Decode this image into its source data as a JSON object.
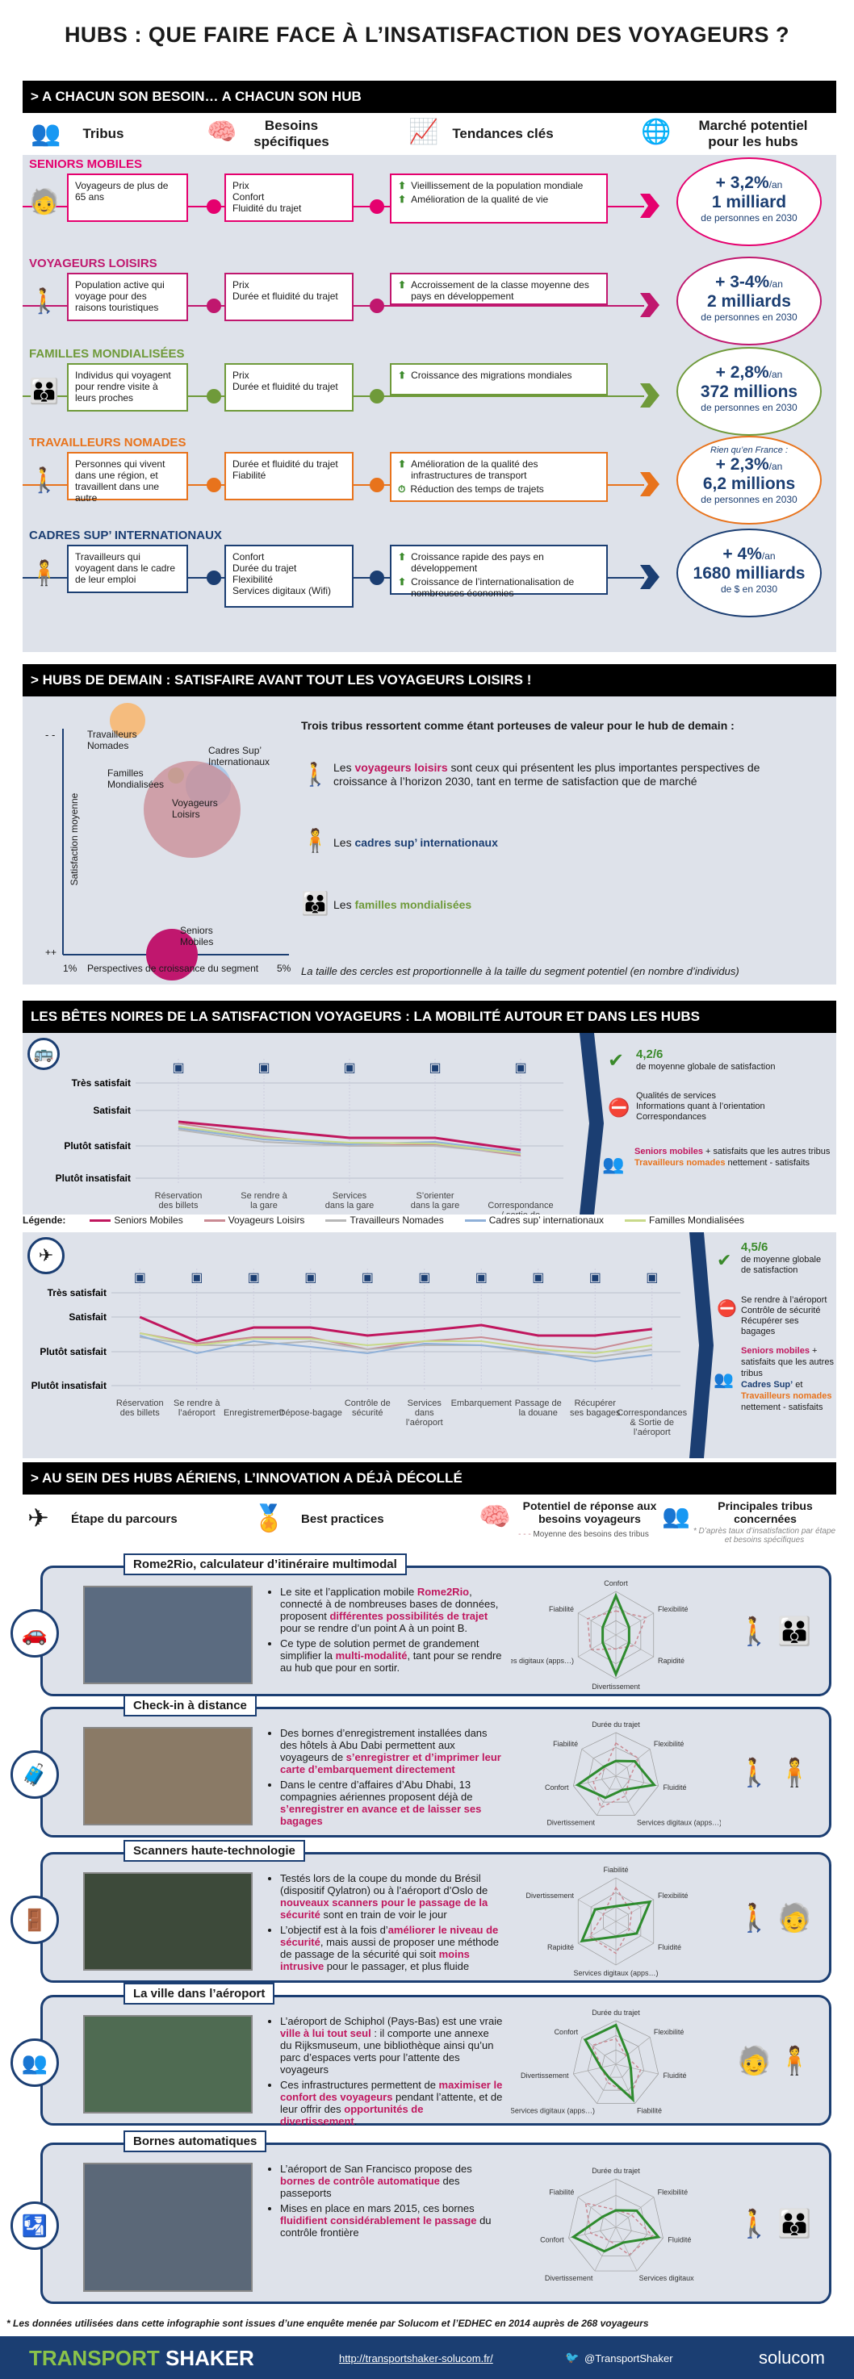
{
  "title": "HUBS : QUE FAIRE FACE À L’INSATISFACTION DES VOYAGEURS ?",
  "s1": {
    "header": "> A CHACUN SON BESOIN… A CHACUN SON HUB",
    "cols": [
      "Tribus",
      "Besoins spécifiques",
      "Tendances clés",
      "Marché potentiel pour les hubs"
    ],
    "segments": [
      {
        "name": "SENIORS MOBILES",
        "color": "#e5006e",
        "desc": "Voyageurs de plus de 65 ans",
        "needs": "Prix\nConfort\nFluidité du trajet",
        "trends": [
          "Vieillissement de la population mondiale",
          "Amélioration de la qualité de vie"
        ],
        "pct": "+ 3,2%",
        "per": "/an",
        "amount": "1 milliard",
        "unit": "de personnes en 2030",
        "note": ""
      },
      {
        "name": "VOYAGEURS LOISIRS",
        "color": "#c0176e",
        "desc": "Population active qui voyage pour des raisons touristiques",
        "needs": "Prix\nDurée et fluidité du trajet",
        "trends": [
          "Accroissement de la classe moyenne des pays en développement"
        ],
        "pct": "+ 3-4%",
        "per": "/an",
        "amount": "2 milliards",
        "unit": "de personnes en 2030",
        "note": ""
      },
      {
        "name": "FAMILLES MONDIALISÉES",
        "color": "#6f9a3a",
        "desc": "Individus qui voyagent pour rendre visite à leurs proches",
        "needs": "Prix\nDurée et fluidité du trajet",
        "trends": [
          "Croissance des migrations mondiales"
        ],
        "pct": "+ 2,8%",
        "per": "/an",
        "amount": "372 millions",
        "unit": "de personnes en 2030",
        "note": ""
      },
      {
        "name": "TRAVAILLEURS NOMADES",
        "color": "#e8731c",
        "desc": "Personnes qui vivent dans une région, et travaillent dans une autre",
        "needs": "Durée et fluidité du trajet\nFiabilité",
        "trends": [
          "Amélioration de la qualité des infrastructures de transport",
          "Réduction des temps de trajets"
        ],
        "pct": "+ 2,3%",
        "per": "/an",
        "amount": "6,2 millions",
        "unit": "de personnes en 2030",
        "note": "Rien qu’en France :"
      },
      {
        "name": "CADRES SUP’ INTERNATIONAUX",
        "color": "#1b3e72",
        "desc": "Travailleurs qui voyagent dans le cadre de leur emploi",
        "needs": "Confort\nDurée du trajet\nFlexibilité\nServices digitaux (Wifi)",
        "trends": [
          "Croissance rapide des pays en développement",
          "Croissance de l’internationalisation de nombreuses économies"
        ],
        "pct": "+ 4%",
        "per": "/an",
        "amount": "1680 milliards",
        "unit": "de $ en 2030",
        "note": ""
      }
    ]
  },
  "s2": {
    "header": "> HUBS DE DEMAIN : SATISFAIRE  AVANT TOUT LES VOYAGEURS LOISIRS !",
    "ylabel": "Satisfaction moyenne",
    "xlabel": "Perspectives de croissance du segment",
    "yminus": "- -",
    "yplus": "++",
    "xmin": "1%",
    "xmax": "5%",
    "bubbles": [
      "Travailleurs Nomades",
      "Cadres Sup’ Internationaux",
      "Familles Mondialisées",
      "Voyageurs Loisirs",
      "Seniors Mobiles"
    ],
    "intro": "Trois tribus ressortent comme étant porteuses de valeur pour le hub de demain :",
    "t1a": "Les ",
    "t1b": "voyageurs loisirs",
    "t1c": " sont ceux qui présentent les plus importantes perspectives de croissance à l’horizon 2030, tant en terme de satisfaction que de marché",
    "t2a": "Les ",
    "t2b": "cadres sup’ internationaux",
    "t3a": "Les ",
    "t3b": "familles mondialisées",
    "note": "La taille des cercles est proportionnelle à la taille du segment potentiel (en nombre d’individus)"
  },
  "s3": {
    "header": "LES BÊTES NOIRES DE LA SATISFACTION VOYAGEURS : LA MOBILITÉ AUTOUR ET DANS LES HUBS",
    "levels": [
      "Très satisfait",
      "Satisfait",
      "Plutôt satisfait",
      "Plutôt insatisfait"
    ],
    "ground_cats": [
      "Réservation des billets",
      "Se rendre à la gare",
      "Services dans la gare",
      "S’orienter dans la gare",
      "Correspondance / sortie de la gare"
    ],
    "ground_score": "4,2/6",
    "ground_score_txt": "de moyenne globale de satisfaction",
    "ground_ok": "Qualités de services\nInformations quant à l’orientation\nCorrespondances",
    "ground_t1": "Seniors mobiles",
    "ground_t2": " + satisfaits que les autres tribus",
    "ground_t3": "Travailleurs nomades",
    "ground_t4": " nettement - satisfaits",
    "legend_label": "Légende:",
    "legend": [
      "Seniors Mobiles",
      "Voyageurs Loisirs",
      "Travailleurs Nomades",
      "Cadres sup’ internationaux",
      "Familles Mondialisées"
    ],
    "air_cats": [
      "Réservation des billets",
      "Se rendre à l’aéroport",
      "Enregistrement",
      "Dépose-bagage",
      "Contrôle de sécurité",
      "Services dans l’aéroport",
      "Embarquement",
      "Passage de la douane",
      "Récupérer ses bagages",
      "Correspondances & Sortie de l’aéroport"
    ],
    "air_score": "4,5/6",
    "air_score_txt": "de moyenne globale de satisfaction",
    "air_ko": "Se rendre à l’aéroport\nContrôle de sécurité\nRécupérer ses bagages",
    "air_t1": "Seniors mobiles",
    "air_t2": " + satisfaits que les autres tribus",
    "air_t3": "Cadres Sup’",
    "air_t4": " et ",
    "air_t5": "Travailleurs nomades",
    "air_t6": " nettement - satisfaits"
  },
  "s4": {
    "header": "> AU SEIN DES HUBS AÉRIENS, L’INNOVATION A DÉJÀ DÉCOLLÉ",
    "h1": "Étape du parcours",
    "h2": "Best practices",
    "h3": "Potentiel de réponse aux besoins voyageurs",
    "h3b": "Moyenne des besoins des tribus",
    "h4": "Principales tribus concernées",
    "h4b": "* D’après taux d’insatisfaction par étape et besoins spécifiques",
    "cards": [
      {
        "title": "Rome2Rio, calculateur d’itinéraire multimodal",
        "axes": [
          "Confort",
          "Flexibilité",
          "Rapidité",
          "Divertissement",
          "Services digitaux (apps…)",
          "Fiabilité"
        ],
        "bullets": [
          [
            "Le site et l’application mobile ",
            "Rome2Rio",
            ", connecté à de nombreuses bases de données, proposent ",
            "différentes possibilités de trajet",
            " pour se rendre d’un point A à un point B."
          ],
          [
            "Ce type de solution permet de grandement simplifier la ",
            "multi-modalité",
            ", tant pour se rendre au hub que pour en sortir.",
            "",
            ""
          ]
        ]
      },
      {
        "title": "Check-in à distance",
        "axes": [
          "Durée du trajet",
          "Flexibilité",
          "Fluidité",
          "Services digitaux (apps…)",
          "Divertissement",
          "Confort",
          "Fiabilité"
        ],
        "bullets": [
          [
            "Des bornes d’enregistrement installées dans des hôtels à Abu Dabi permettent aux voyageurs de ",
            "s’enregistrer et d’imprimer leur carte d’embarquement directement",
            "",
            "",
            ""
          ],
          [
            "Dans le centre d’affaires d’Abu Dhabi, 13 compagnies aériennes proposent déjà de ",
            "s’enregistrer en avance et de laisser ses bagages",
            "",
            "",
            ""
          ]
        ]
      },
      {
        "title": "Scanners haute-technologie",
        "axes": [
          "Fiabilité",
          "Flexibilité",
          "Fluidité",
          "Services digitaux (apps…)",
          "Rapidité",
          "Divertissement"
        ],
        "bullets": [
          [
            "Testés lors de la coupe du monde du Brésil (dispositif Qylatron) ou à l’aéroport d’Oslo de ",
            "nouveaux scanners pour le passage de la sécurité",
            " sont en train de voir le jour",
            "",
            ""
          ],
          [
            "L’objectif est à la fois d’",
            "améliorer le niveau de sécurité",
            ", mais aussi de proposer une méthode de passage de la sécurité qui soit ",
            "moins intrusive",
            " pour le passager, et plus fluide"
          ]
        ]
      },
      {
        "title": "La ville dans l’aéroport",
        "axes": [
          "Durée du trajet",
          "Flexibilité",
          "Fluidité",
          "Fiabilité",
          "Services digitaux (apps…)",
          "Divertissement",
          "Confort"
        ],
        "bullets": [
          [
            "L’aéroport de Schiphol (Pays-Bas) est une vraie ",
            "ville à lui tout seul",
            " : il comporte une annexe du Rijksmuseum, une bibliothèque ainsi qu’un parc d’espaces verts pour l’attente des voyageurs",
            "",
            ""
          ],
          [
            "Ces infrastructures permettent de ",
            "maximiser le confort des voyageurs",
            " pendant l’attente, et de leur offrir des ",
            "opportunités de divertissement",
            "."
          ]
        ]
      },
      {
        "title": "Bornes automatiques",
        "axes": [
          "Durée du trajet",
          "Flexibilité",
          "Fluidité",
          "Services digitaux",
          "Divertissement",
          "Confort",
          "Fiabilité"
        ],
        "bullets": [
          [
            "L’aéroport de San Francisco propose des ",
            "bornes de contrôle automatique",
            " des passeports",
            "",
            ""
          ],
          [
            "Mises en place en mars 2015, ces bornes ",
            "fluidifient considérablement le passage",
            " du contrôle frontière",
            "",
            ""
          ]
        ]
      }
    ]
  },
  "footnote": "* Les données utilisées dans cette infographie sont issues d’une enquête menée par Solucom et l’EDHEC en 2014 auprès de 268 voyageurs",
  "footer": {
    "brand1": "TRANSPORT",
    "brand2": " SHAKER",
    "url": "http://transportshaker-solucom.fr/",
    "twitter": "@TransportShaker",
    "company": "solucom"
  }
}
